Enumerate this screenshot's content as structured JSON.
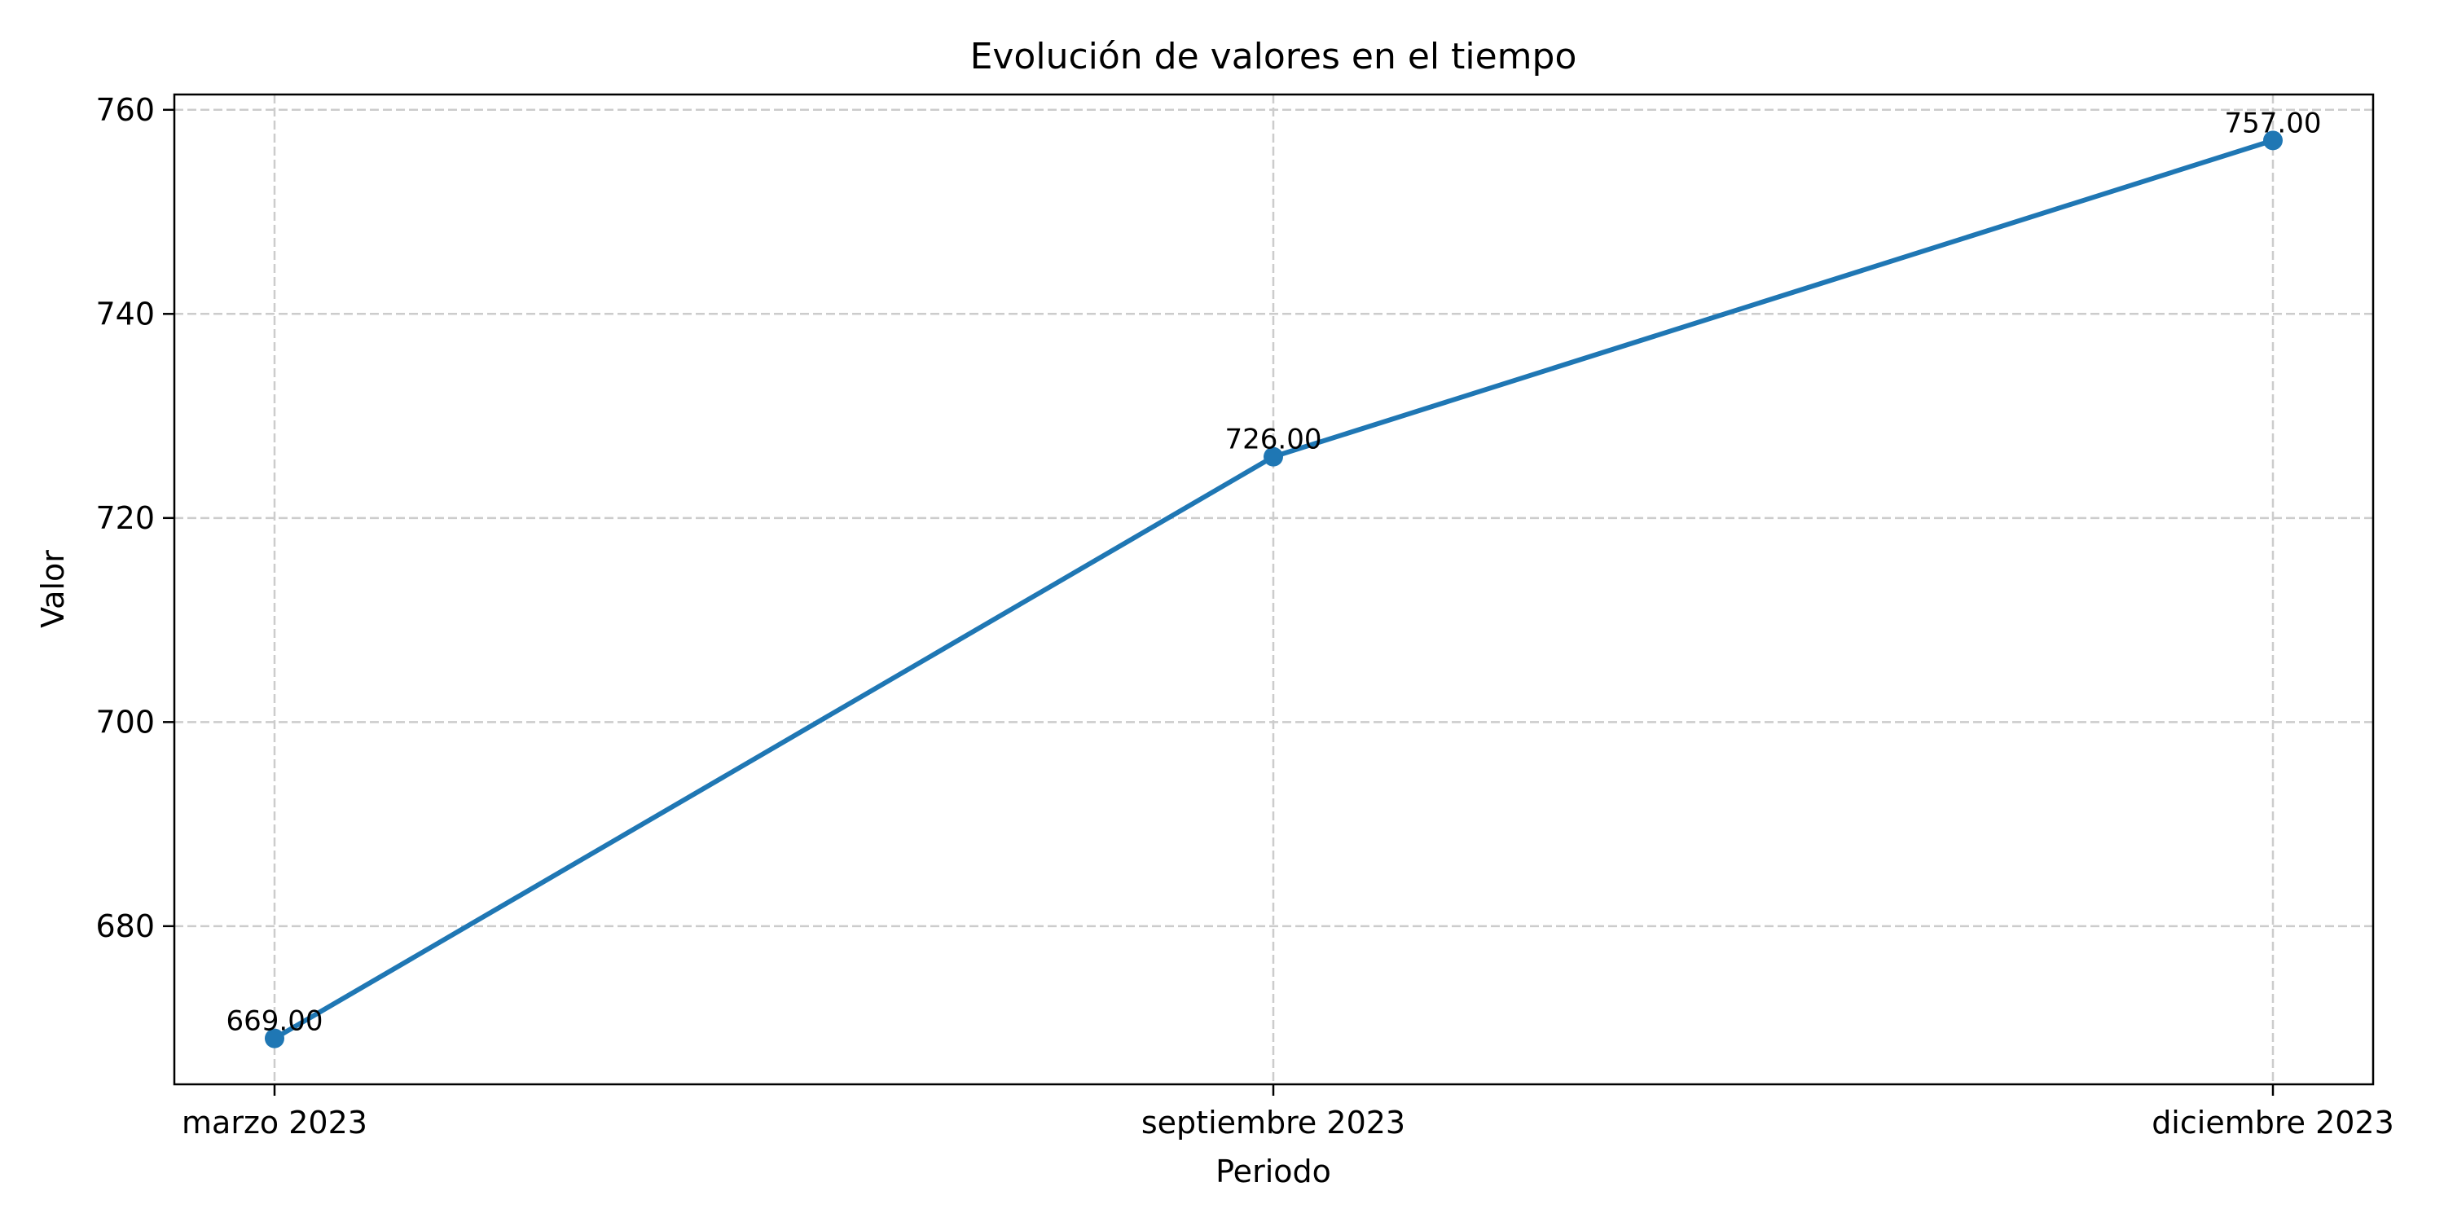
{
  "chart_data": {
    "type": "line",
    "title": "Evolución de valores en el tiempo",
    "xlabel": "Periodo",
    "ylabel": "Valor",
    "categories": [
      "marzo 2023",
      "septiembre 2023",
      "diciembre 2023"
    ],
    "series": [
      {
        "values": [
          669.0,
          726.0,
          757.0
        ],
        "data_labels": [
          "669.00",
          "726.00",
          "757.00"
        ],
        "color": "#1f77b4"
      }
    ],
    "ylim": [
      664.5,
      761.5
    ],
    "yticks": [
      {
        "value": 680,
        "label": "680"
      },
      {
        "value": 700,
        "label": "700"
      },
      {
        "value": 720,
        "label": "720"
      },
      {
        "value": 740,
        "label": "740"
      },
      {
        "value": 760,
        "label": "760"
      }
    ],
    "grid": true,
    "legend": "none"
  }
}
